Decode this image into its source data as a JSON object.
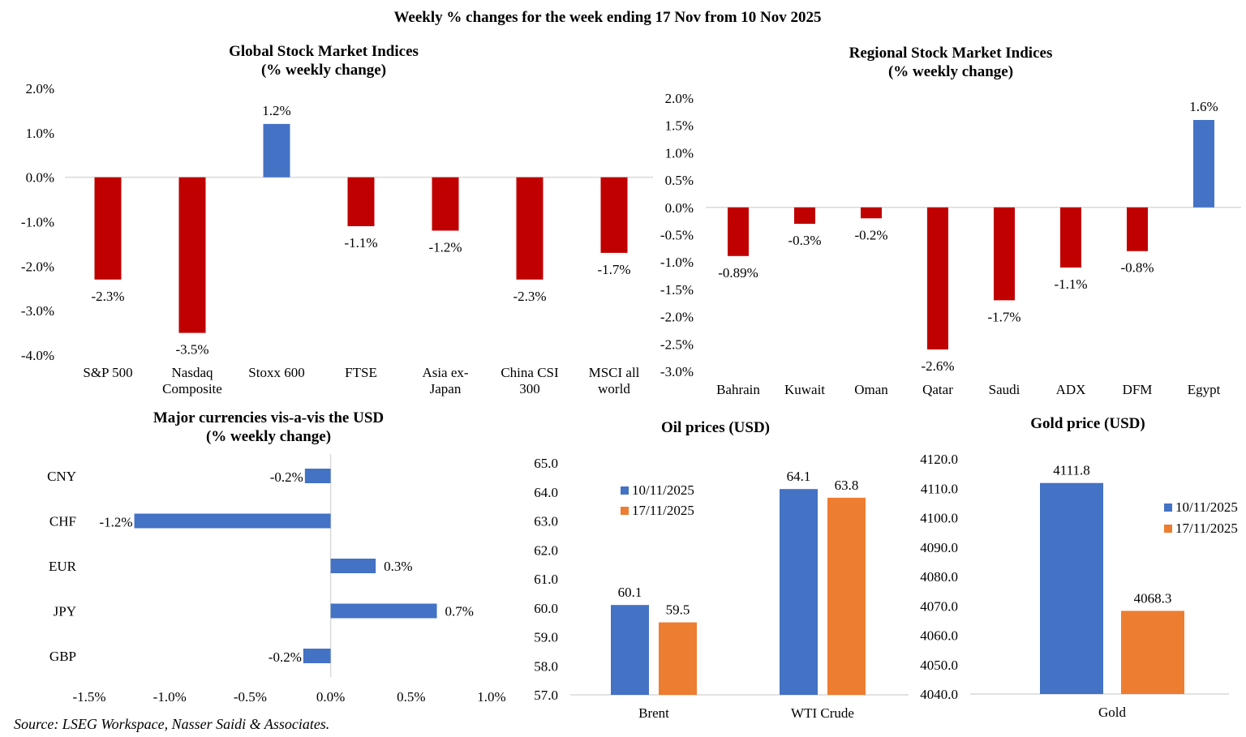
{
  "title": "Weekly % changes for the week ending 17 Nov from 10 Nov 2025",
  "source": "Source: LSEG Workspace, Nasser Saidi & Associates.",
  "colors": {
    "positive": "#4472C4",
    "negative": "#C00000",
    "series1": "#4472C4",
    "series2": "#ED7D31",
    "axis": "#D9D9D9"
  },
  "chart_data": [
    {
      "type": "bar",
      "title": [
        "Global Stock Market Indices",
        "(% weekly change)"
      ],
      "categories": [
        "S&P 500",
        "Nasdaq\nComposite",
        "Stoxx 600",
        "FTSE",
        "Asia ex-\nJapan",
        "China CSI\n300",
        "MSCI all\nworld"
      ],
      "values": [
        -2.3,
        -3.5,
        1.2,
        -1.1,
        -1.2,
        -2.3,
        -1.7
      ],
      "data_labels": [
        "-2.3%",
        "-3.5%",
        "1.2%",
        "-1.1%",
        "-1.2%",
        "-2.3%",
        "-1.7%"
      ],
      "ylim": [
        -4.0,
        2.0
      ],
      "yticks": [
        "2.0%",
        "1.0%",
        "0.0%",
        "-1.0%",
        "-2.0%",
        "-3.0%",
        "-4.0%"
      ],
      "grid": false
    },
    {
      "type": "bar",
      "title": [
        "Regional Stock Market Indices",
        "(% weekly change)"
      ],
      "categories": [
        "Bahrain",
        "Kuwait",
        "Oman",
        "Qatar",
        "Saudi",
        "ADX",
        "DFM",
        "Egypt"
      ],
      "values": [
        -0.89,
        -0.3,
        -0.2,
        -2.6,
        -1.7,
        -1.1,
        -0.8,
        1.6
      ],
      "data_labels": [
        "-0.89%",
        "-0.3%",
        "-0.2%",
        "-2.6%",
        "-1.7%",
        "-1.1%",
        "-0.8%",
        "1.6%"
      ],
      "ylim": [
        -3.0,
        2.0
      ],
      "yticks": [
        "2.0%",
        "1.5%",
        "1.0%",
        "0.5%",
        "0.0%",
        "-0.5%",
        "-1.0%",
        "-1.5%",
        "-2.0%",
        "-2.5%",
        "-3.0%"
      ],
      "grid": false
    },
    {
      "type": "bar",
      "orientation": "horizontal",
      "title": [
        "Major currencies vis-a-vis the USD",
        "(% weekly change)"
      ],
      "categories": [
        "CNY",
        "CHF",
        "EUR",
        "JPY",
        "GBP"
      ],
      "values": [
        -0.16,
        -1.22,
        0.28,
        0.66,
        -0.17
      ],
      "data_labels": [
        "-0.2%",
        "-1.2%",
        "0.3%",
        "0.7%",
        "-0.2%"
      ],
      "xlim": [
        -1.5,
        1.0
      ],
      "xticks": [
        "-1.5%",
        "-1.0%",
        "-0.5%",
        "0.0%",
        "0.5%",
        "1.0%"
      ],
      "grid": false
    },
    {
      "type": "bar",
      "title": [
        "Oil prices (USD)"
      ],
      "categories": [
        "Brent",
        "WTI Crude"
      ],
      "series": [
        {
          "name": "10/11/2025",
          "values": [
            60.1,
            64.1
          ],
          "data_labels": [
            "60.1",
            "64.1"
          ]
        },
        {
          "name": "17/11/2025",
          "values": [
            59.5,
            63.8
          ],
          "data_labels": [
            "59.5",
            "63.8"
          ]
        }
      ],
      "ylim": [
        57.0,
        65.0
      ],
      "yticks": [
        "65.0",
        "64.0",
        "63.0",
        "62.0",
        "61.0",
        "60.0",
        "59.0",
        "58.0",
        "57.0"
      ],
      "legend": "top-left",
      "grid": false
    },
    {
      "type": "bar",
      "title": [
        "Gold price (USD)"
      ],
      "categories": [
        "Gold"
      ],
      "series": [
        {
          "name": "10/11/2025",
          "values": [
            4111.8
          ],
          "data_labels": [
            "4111.8"
          ]
        },
        {
          "name": "17/11/2025",
          "values": [
            4068.3
          ],
          "data_labels": [
            "4068.3"
          ]
        }
      ],
      "ylim": [
        4040.0,
        4120.0
      ],
      "yticks": [
        "4120.0",
        "4110.0",
        "4100.0",
        "4090.0",
        "4080.0",
        "4070.0",
        "4060.0",
        "4050.0",
        "4040.0"
      ],
      "legend": "right",
      "grid": false
    }
  ]
}
